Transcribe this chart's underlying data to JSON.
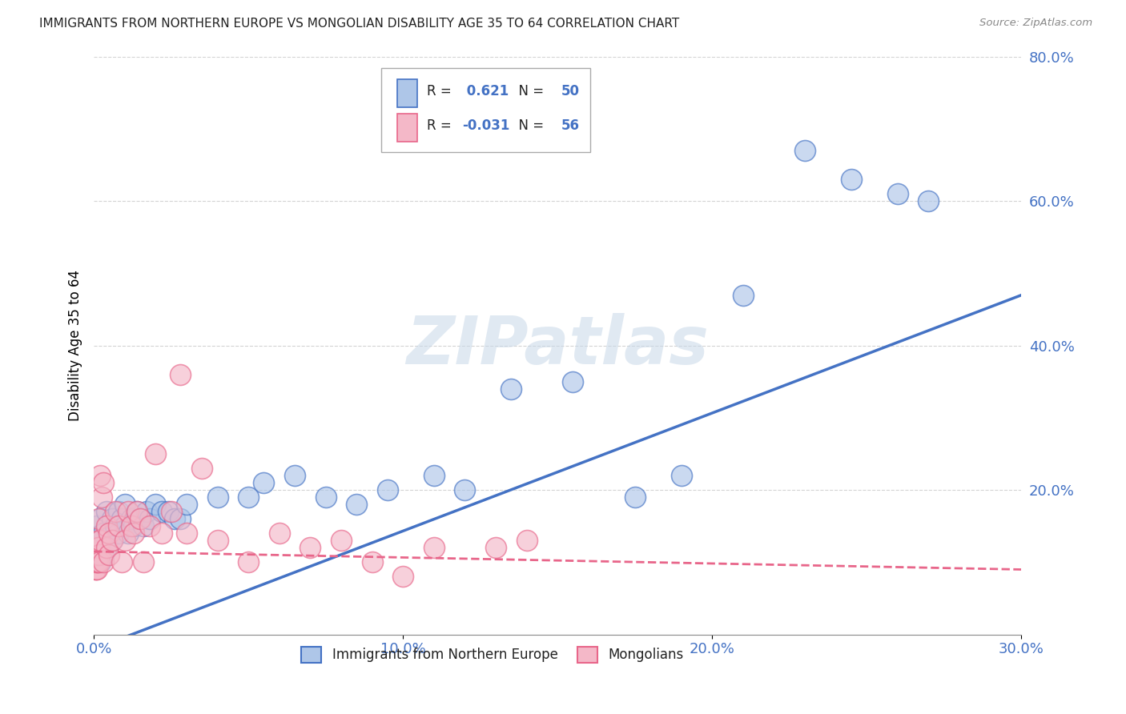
{
  "title": "IMMIGRANTS FROM NORTHERN EUROPE VS MONGOLIAN DISABILITY AGE 35 TO 64 CORRELATION CHART",
  "source": "Source: ZipAtlas.com",
  "ylabel": "Disability Age 35 to 64",
  "legend_label1": "Immigrants from Northern Europe",
  "legend_label2": "Mongolians",
  "R1": 0.621,
  "N1": 50,
  "R2": -0.031,
  "N2": 56,
  "color_blue": "#aec6e8",
  "color_pink": "#f4b8c8",
  "line_blue": "#4472c4",
  "line_pink": "#e8668a",
  "watermark": "ZIPatlas",
  "xlim": [
    0,
    0.3
  ],
  "ylim": [
    0,
    0.8
  ],
  "x_ticks": [
    0.0,
    0.1,
    0.2,
    0.3
  ],
  "y_ticks": [
    0.2,
    0.4,
    0.6,
    0.8
  ],
  "blue_line_x": [
    0.0,
    0.3
  ],
  "blue_line_y": [
    -0.02,
    0.47
  ],
  "pink_line_x": [
    0.0,
    0.3
  ],
  "pink_line_y": [
    0.115,
    0.09
  ],
  "blue_x": [
    0.001,
    0.001,
    0.002,
    0.002,
    0.002,
    0.003,
    0.003,
    0.004,
    0.004,
    0.005,
    0.006,
    0.006,
    0.007,
    0.008,
    0.008,
    0.009,
    0.01,
    0.01,
    0.011,
    0.012,
    0.013,
    0.014,
    0.015,
    0.016,
    0.017,
    0.018,
    0.02,
    0.022,
    0.024,
    0.026,
    0.028,
    0.03,
    0.04,
    0.05,
    0.055,
    0.065,
    0.075,
    0.085,
    0.095,
    0.11,
    0.12,
    0.135,
    0.155,
    0.175,
    0.19,
    0.21,
    0.23,
    0.245,
    0.26,
    0.27
  ],
  "blue_y": [
    0.12,
    0.15,
    0.1,
    0.13,
    0.16,
    0.11,
    0.14,
    0.12,
    0.17,
    0.14,
    0.16,
    0.13,
    0.15,
    0.14,
    0.17,
    0.16,
    0.15,
    0.18,
    0.14,
    0.16,
    0.15,
    0.17,
    0.16,
    0.15,
    0.17,
    0.16,
    0.18,
    0.17,
    0.17,
    0.16,
    0.16,
    0.18,
    0.19,
    0.19,
    0.21,
    0.22,
    0.19,
    0.18,
    0.2,
    0.22,
    0.2,
    0.34,
    0.35,
    0.19,
    0.22,
    0.47,
    0.67,
    0.63,
    0.61,
    0.6
  ],
  "pink_x": [
    0.0003,
    0.0004,
    0.0005,
    0.0005,
    0.0006,
    0.0007,
    0.0007,
    0.0008,
    0.0009,
    0.001,
    0.001,
    0.001,
    0.0012,
    0.0013,
    0.0014,
    0.0015,
    0.0016,
    0.0017,
    0.0018,
    0.002,
    0.002,
    0.0025,
    0.003,
    0.003,
    0.004,
    0.004,
    0.005,
    0.005,
    0.006,
    0.007,
    0.008,
    0.009,
    0.01,
    0.011,
    0.012,
    0.013,
    0.014,
    0.015,
    0.016,
    0.018,
    0.02,
    0.022,
    0.025,
    0.028,
    0.03,
    0.035,
    0.04,
    0.05,
    0.06,
    0.07,
    0.08,
    0.09,
    0.1,
    0.11,
    0.13,
    0.14
  ],
  "pink_y": [
    0.1,
    0.09,
    0.1,
    0.11,
    0.09,
    0.1,
    0.11,
    0.1,
    0.09,
    0.1,
    0.11,
    0.12,
    0.1,
    0.11,
    0.13,
    0.16,
    0.12,
    0.11,
    0.1,
    0.13,
    0.22,
    0.19,
    0.21,
    0.1,
    0.12,
    0.15,
    0.14,
    0.11,
    0.13,
    0.17,
    0.15,
    0.1,
    0.13,
    0.17,
    0.15,
    0.14,
    0.17,
    0.16,
    0.1,
    0.15,
    0.25,
    0.14,
    0.17,
    0.36,
    0.14,
    0.23,
    0.13,
    0.1,
    0.14,
    0.12,
    0.13,
    0.1,
    0.08,
    0.12,
    0.12,
    0.13
  ]
}
